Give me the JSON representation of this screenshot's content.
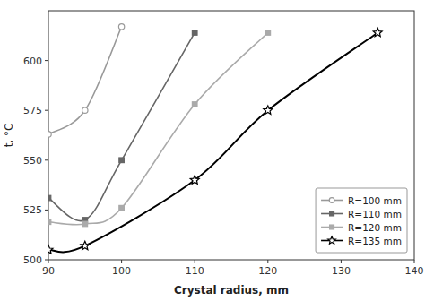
{
  "chart_data": {
    "type": "line",
    "xlabel": "Crystal radius, mm",
    "ylabel": "t, °C",
    "series": [
      {
        "name": "R=100 mm",
        "color": "#999999",
        "marker": "circle",
        "line_style": "solid",
        "x": [
          90,
          95,
          100
        ],
        "values": [
          563,
          575,
          617
        ]
      },
      {
        "name": "R=110 mm",
        "color": "#666666",
        "marker": "square",
        "line_style": "solid",
        "x": [
          90,
          95,
          100,
          110
        ],
        "values": [
          531,
          520,
          550,
          614
        ]
      },
      {
        "name": "R=120 mm",
        "color": "#aaaaaa",
        "marker": "square",
        "line_style": "solid",
        "x": [
          90,
          95,
          100,
          110,
          120
        ],
        "values": [
          519,
          518,
          526,
          578,
          614
        ]
      },
      {
        "name": "R=135 mm",
        "color": "#000000",
        "marker": "star",
        "line_style": "solid",
        "x": [
          90,
          95,
          110,
          120,
          135
        ],
        "values": [
          505,
          507,
          540,
          575,
          614
        ]
      }
    ],
    "xlim": [
      90,
      140
    ],
    "ylim": [
      500,
      625
    ],
    "xticks": [
      90,
      100,
      110,
      120,
      130,
      140
    ],
    "yticks": [
      500,
      525,
      550,
      575,
      600
    ],
    "grid": false,
    "legend": "lower right"
  }
}
